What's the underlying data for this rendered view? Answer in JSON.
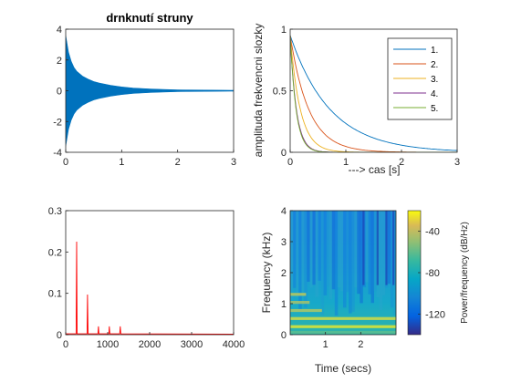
{
  "chart_data": [
    {
      "type": "area",
      "title": "drnknutí struny",
      "xlabel": "",
      "ylabel": "",
      "xlim": [
        0,
        3
      ],
      "ylim": [
        -4,
        4
      ],
      "x_ticks": [
        "0",
        "1",
        "2",
        "3"
      ],
      "y_ticks": [
        "-4",
        "-2",
        "0",
        "2",
        "4"
      ],
      "series": [
        {
          "x": [
            0,
            0.05,
            0.1,
            0.15,
            0.2,
            0.3,
            0.4,
            0.5,
            0.6,
            0.8,
            1.0,
            1.2,
            1.5,
            1.8,
            2.0,
            2.2,
            2.5,
            3.0
          ],
          "envelope": [
            3.6,
            2.5,
            1.9,
            1.5,
            1.25,
            0.95,
            0.75,
            0.6,
            0.5,
            0.35,
            0.25,
            0.18,
            0.12,
            0.08,
            0.06,
            0.05,
            0.04,
            0.03
          ]
        }
      ],
      "color": "#0072BD"
    },
    {
      "type": "line",
      "title": "",
      "xlabel": "---> cas [s]",
      "ylabel": "amplituda frekvencni slozky",
      "xlim": [
        0,
        3
      ],
      "ylim": [
        0,
        1
      ],
      "x_ticks": [
        "0",
        "1",
        "2",
        "3"
      ],
      "y_ticks": [
        "0",
        "0.5",
        "1"
      ],
      "legend": {
        "placement": "top-right",
        "entries": [
          "1.",
          "2.",
          "3.",
          "4.",
          "5."
        ]
      },
      "series": [
        {
          "name": "1.",
          "color": "#0072BD",
          "amplitude": 0.95,
          "decay_rate": 1.4
        },
        {
          "name": "2.",
          "color": "#D95319",
          "amplitude": 0.95,
          "decay_rate": 3.0
        },
        {
          "name": "3.",
          "color": "#EDB120",
          "amplitude": 0.95,
          "decay_rate": 5.5
        },
        {
          "name": "4.",
          "color": "#7E2F8E",
          "amplitude": 0.95,
          "decay_rate": 9.0
        },
        {
          "name": "5.",
          "color": "#77AC30",
          "amplitude": 0.95,
          "decay_rate": 9.5
        }
      ]
    },
    {
      "type": "line",
      "title": "",
      "xlabel": "",
      "ylabel": "",
      "xlim": [
        0,
        4000
      ],
      "ylim": [
        0,
        0.3
      ],
      "x_ticks": [
        "0",
        "1000",
        "2000",
        "3000",
        "4000"
      ],
      "y_ticks": [
        "0",
        "0.1",
        "0.2",
        "0.3"
      ],
      "color": "#FF0000",
      "peaks": [
        {
          "x": 260,
          "y": 0.225
        },
        {
          "x": 520,
          "y": 0.097
        },
        {
          "x": 780,
          "y": 0.02
        },
        {
          "x": 1040,
          "y": 0.02
        },
        {
          "x": 1300,
          "y": 0.02
        }
      ]
    },
    {
      "type": "heatmap",
      "title": "",
      "xlabel": "Time (secs)",
      "ylabel": "Frequency (kHz)",
      "xlim": [
        0,
        3
      ],
      "ylim": [
        0,
        4
      ],
      "x_ticks": [
        "1",
        "2"
      ],
      "y_ticks": [
        "0",
        "1",
        "2",
        "3",
        "4"
      ],
      "colorbar": {
        "label": "Power/frequency (dB/Hz)",
        "ticks": [
          "-40",
          "-80",
          "-120"
        ],
        "range": [
          -140,
          -20
        ]
      },
      "harmonics_khz": [
        0.26,
        0.52,
        0.78,
        1.04,
        1.3
      ]
    }
  ]
}
